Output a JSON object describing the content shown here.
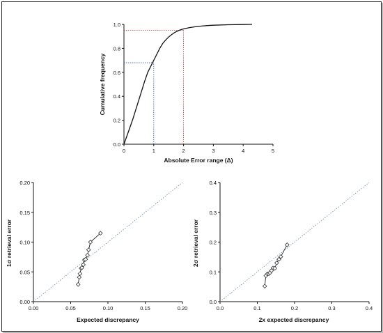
{
  "chart_data": [
    {
      "type": "line",
      "xlabel": "Absolute Error range (Δ)",
      "ylabel": "Cumulative frequency",
      "xlim": [
        0,
        5
      ],
      "ylim": [
        0,
        1.0
      ],
      "xticks": [
        0,
        1,
        2,
        3,
        4,
        5
      ],
      "yticks": [
        0.0,
        0.2,
        0.4,
        0.6,
        0.8,
        1.0
      ],
      "grid": false,
      "series": [
        {
          "color": "#111111",
          "x": [
            0,
            0.1,
            0.2,
            0.3,
            0.4,
            0.5,
            0.6,
            0.7,
            0.8,
            0.9,
            1.0,
            1.1,
            1.2,
            1.3,
            1.4,
            1.5,
            1.6,
            1.7,
            1.8,
            1.9,
            2.0,
            2.2,
            2.4,
            2.6,
            2.8,
            3.0,
            3.5,
            4.0,
            4.3
          ],
          "y": [
            0,
            0.07,
            0.14,
            0.21,
            0.29,
            0.37,
            0.45,
            0.53,
            0.6,
            0.65,
            0.7,
            0.75,
            0.8,
            0.84,
            0.87,
            0.895,
            0.915,
            0.932,
            0.945,
            0.955,
            0.962,
            0.973,
            0.98,
            0.986,
            0.99,
            0.993,
            0.997,
            0.999,
            1.0
          ]
        }
      ],
      "guides": [
        {
          "color": "#3355cc",
          "x": 1.0,
          "y": 0.68
        },
        {
          "color": "#cc3344",
          "x": 2.0,
          "y": 0.95
        }
      ]
    },
    {
      "type": "scatter",
      "xlabel": "Expected discrepancy",
      "ylabel": "1σ  retrieval error",
      "xlim": [
        0,
        0.2
      ],
      "ylim": [
        0,
        0.2
      ],
      "xticks": [
        "0.00",
        "0.05",
        "0.10",
        "0.15",
        "0.20"
      ],
      "yticks": [
        "0.00",
        "0.05",
        "0.10",
        "0.15",
        "0.20"
      ],
      "grid": false,
      "reference_line": "y = x",
      "series": [
        {
          "marker": "diamond",
          "x": [
            0.06,
            0.0615,
            0.0625,
            0.064,
            0.065,
            0.067,
            0.0685,
            0.07,
            0.0725,
            0.074,
            0.0765,
            0.09
          ],
          "y": [
            0.029,
            0.041,
            0.047,
            0.056,
            0.057,
            0.062,
            0.07,
            0.071,
            0.078,
            0.087,
            0.1,
            0.115
          ]
        }
      ]
    },
    {
      "type": "scatter",
      "xlabel": "2x expected discrepancy",
      "ylabel": "2σ  retrieval error",
      "xlim": [
        0,
        0.4
      ],
      "ylim": [
        0,
        0.4
      ],
      "xticks": [
        "0.0",
        "0.1",
        "0.2",
        "0.3",
        "0.4"
      ],
      "yticks": [
        "0.0",
        "0.1",
        "0.2",
        "0.3",
        "0.4"
      ],
      "grid": false,
      "reference_line": "y = x",
      "series": [
        {
          "marker": "diamond",
          "x": [
            0.12,
            0.123,
            0.127,
            0.131,
            0.134,
            0.138,
            0.142,
            0.147,
            0.152,
            0.158,
            0.163,
            0.18
          ],
          "y": [
            0.052,
            0.087,
            0.093,
            0.094,
            0.097,
            0.104,
            0.113,
            0.112,
            0.13,
            0.142,
            0.151,
            0.191
          ]
        }
      ]
    }
  ]
}
